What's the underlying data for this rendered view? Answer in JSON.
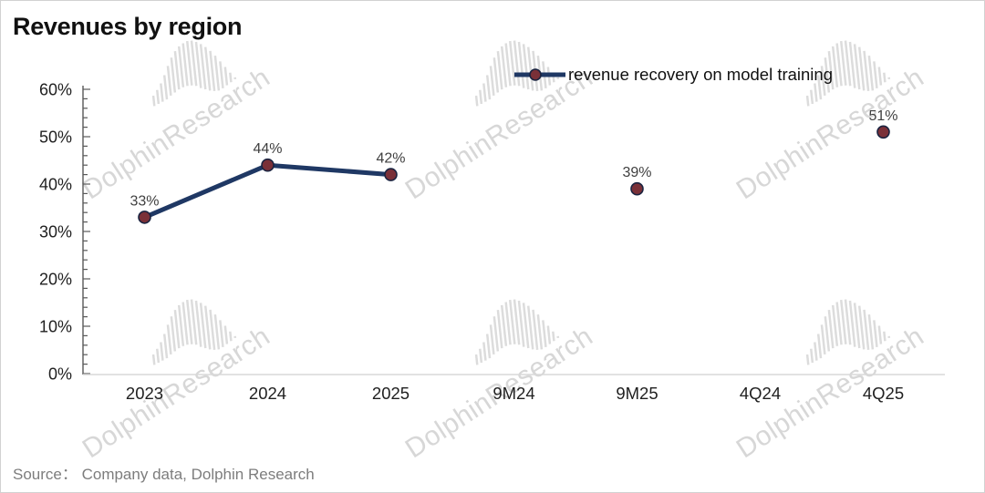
{
  "title": "Revenues by region",
  "legend": {
    "label": "revenue recovery on model training"
  },
  "source": {
    "text": "Source：  Company data, Dolphin Research"
  },
  "watermark": {
    "text": "DolphinResearch"
  },
  "colors": {
    "line": "#1f3864",
    "marker_fill": "#7a3038",
    "marker_stroke": "#1a2340",
    "data_label": "#3f3f3f",
    "axis_text": "#1f1f1f",
    "y_axis_line": "#595959",
    "x_axis_line": "#d9d9d9",
    "source_text": "#7d7d7d",
    "watermark": "#d9d9d9"
  },
  "chart_data": {
    "type": "line",
    "title": "Revenues by region",
    "categories": [
      "2023",
      "2024",
      "2025",
      "9M24",
      "9M25",
      "4Q24",
      "4Q25"
    ],
    "series": [
      {
        "name": "revenue recovery on model training",
        "values": [
          33,
          44,
          42,
          null,
          39,
          null,
          51
        ]
      }
    ],
    "data_labels": [
      "33%",
      "44%",
      "42%",
      null,
      "39%",
      null,
      "51%"
    ],
    "y_ticks": [
      {
        "value": 0,
        "label": "0%"
      },
      {
        "value": 10,
        "label": "10%"
      },
      {
        "value": 20,
        "label": "20%"
      },
      {
        "value": 30,
        "label": "30%"
      },
      {
        "value": 40,
        "label": "40%"
      },
      {
        "value": 50,
        "label": "50%"
      },
      {
        "value": 60,
        "label": "60%"
      }
    ],
    "ylim": [
      0,
      60
    ],
    "y_minor_step": 2,
    "grid": false,
    "legend_position": "top-right",
    "xlabel": "",
    "ylabel": ""
  }
}
